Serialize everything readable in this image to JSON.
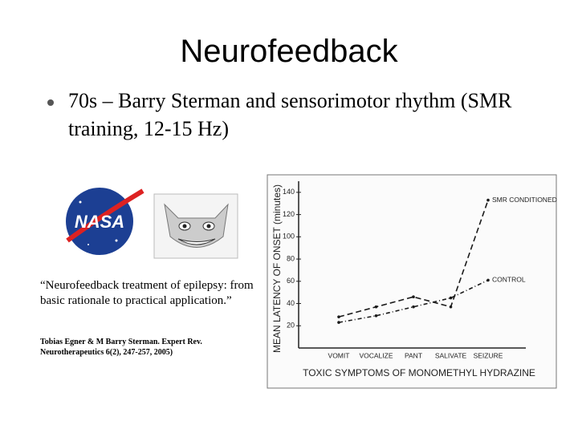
{
  "slide": {
    "title": "Neurofeedback",
    "bullet": "70s – Barry Sterman and sensorimotor rhythm (SMR training, 12-15 Hz)",
    "logo_text": "NASA",
    "quote": "“Neurofeedback treatment of epilepsy: from basic rationale to practical application.”",
    "citation": "Tobias Egner & M Barry Sterman. Expert Rev. Neurotherapeutics 6(2), 247-257, 2005)"
  },
  "chart_data": {
    "type": "line",
    "y_label": "MEAN LATENCY OF ONSET (minutes)",
    "x_label": "TOXIC SYMPTOMS OF MONOMETHYL HYDRAZINE",
    "categories": [
      "VOMIT",
      "VOCALIZE",
      "PANT",
      "SALIVATE",
      "SEIZURE"
    ],
    "series": [
      {
        "name": "SMR CONDITIONED",
        "color": "#1a1a1a",
        "values": [
          28,
          37,
          46,
          37,
          133
        ]
      },
      {
        "name": "CONTROL",
        "color": "#1a1a1a",
        "values": [
          23,
          29,
          37,
          45,
          61
        ]
      }
    ],
    "ylim": [
      0,
      150
    ],
    "yticks": [
      20,
      40,
      60,
      80,
      100,
      120,
      140
    ]
  }
}
